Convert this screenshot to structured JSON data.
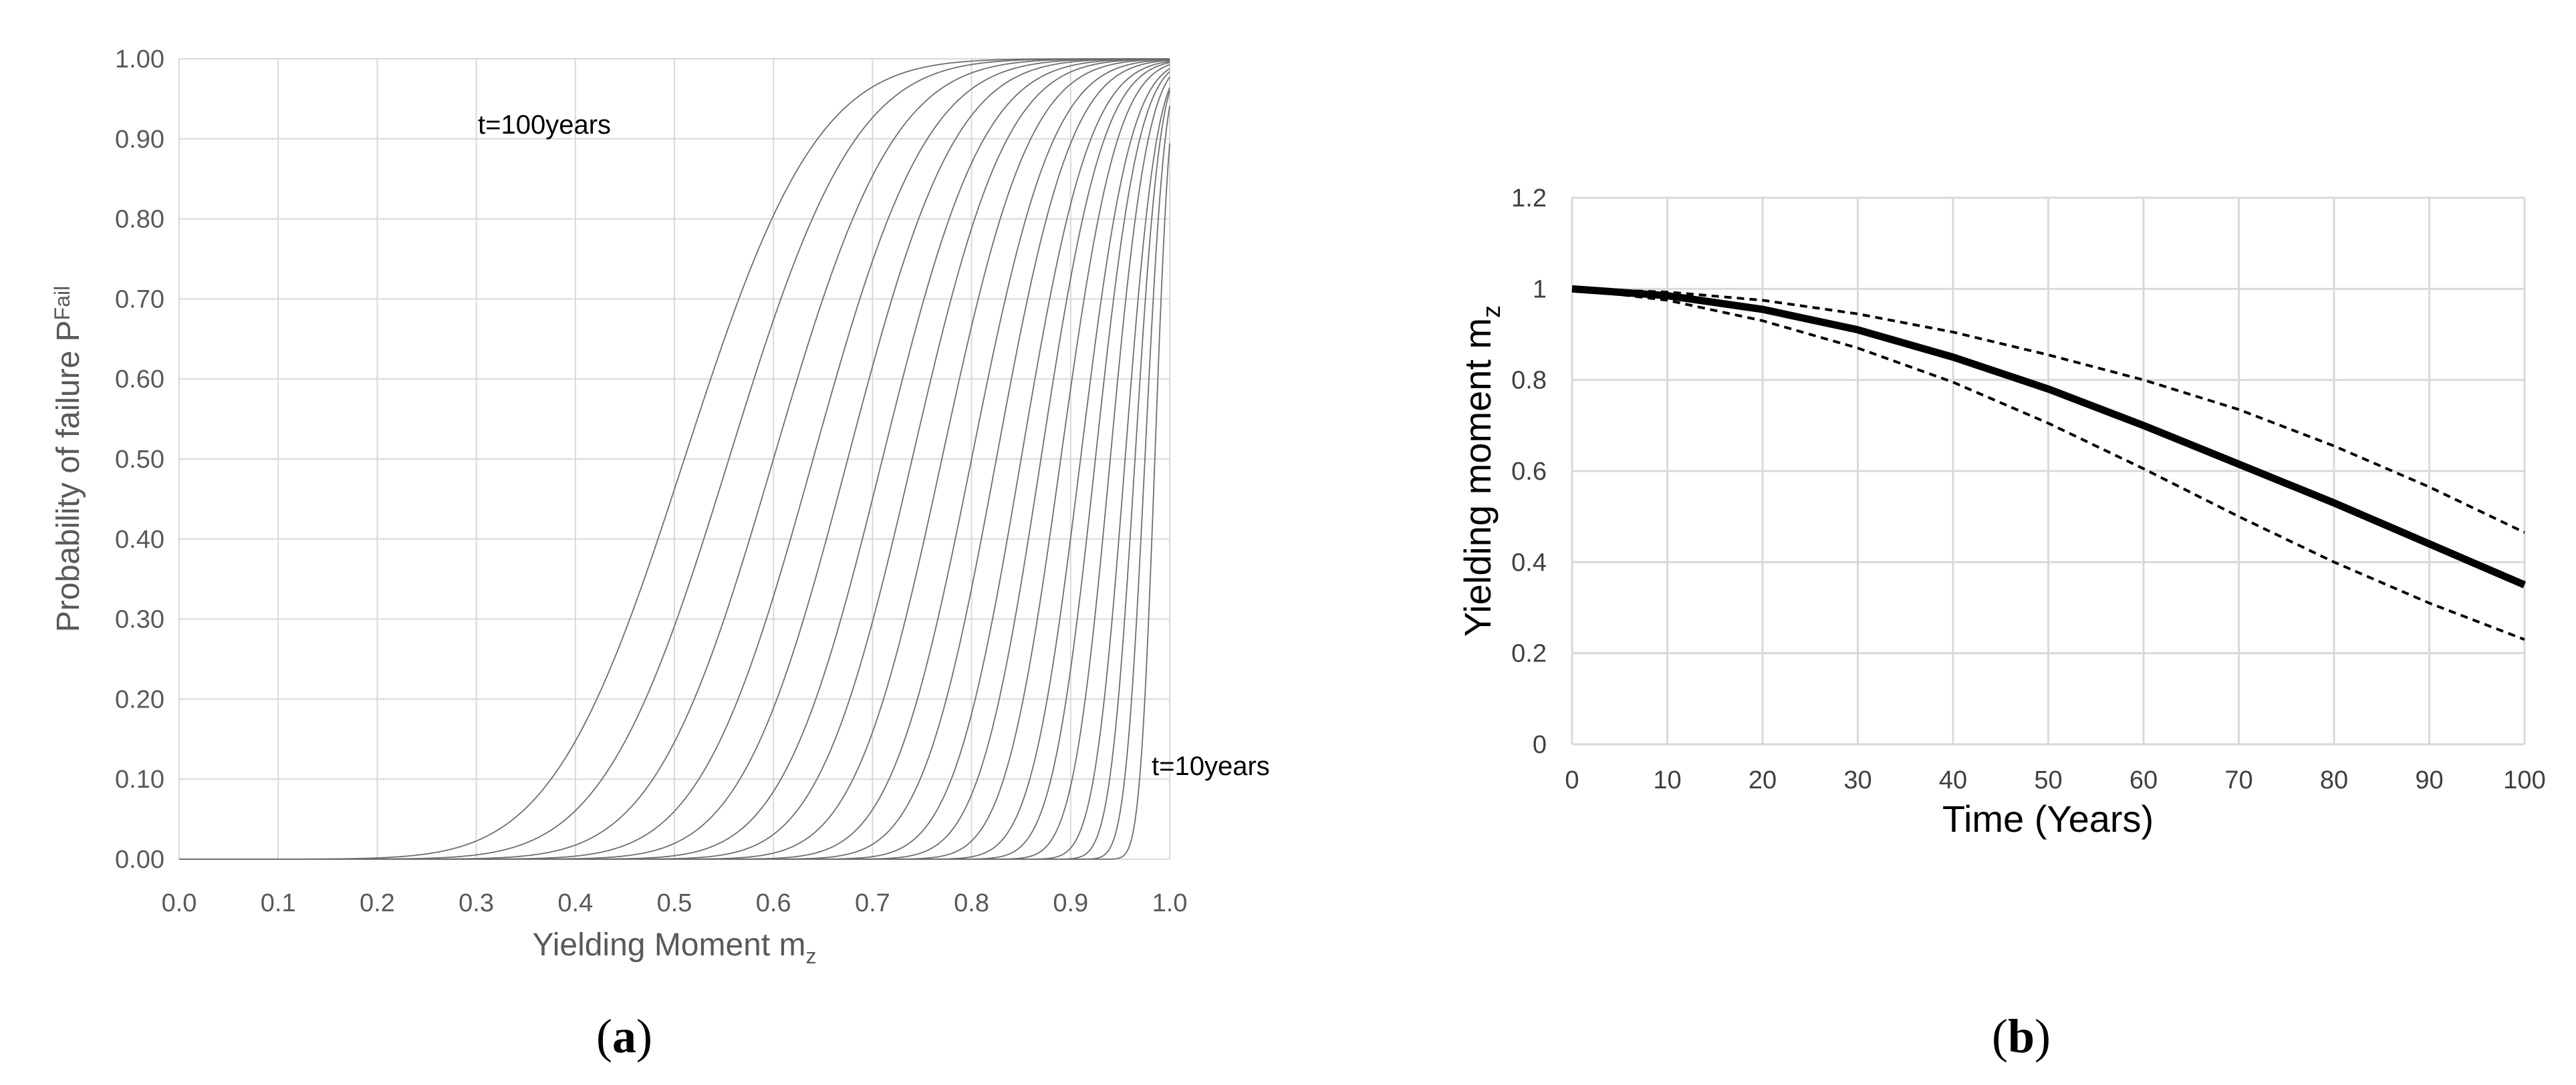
{
  "chart_data": [
    {
      "type": "line",
      "panel": "a",
      "panel_prefix": "(",
      "panel_letter": "a",
      "panel_suffix": ")",
      "xlabel": "Yielding Moment m",
      "xlabel_sub": "z",
      "ylabel": "Probability of failure P",
      "ylabel_sub": "Fail",
      "xlim": [
        0.0,
        1.0
      ],
      "ylim": [
        0.0,
        1.0
      ],
      "xticks": [
        "0.0",
        "0.1",
        "0.2",
        "0.3",
        "0.4",
        "0.5",
        "0.6",
        "0.7",
        "0.8",
        "0.9",
        "1.0"
      ],
      "yticks": [
        "0.00",
        "0.10",
        "0.20",
        "0.30",
        "0.40",
        "0.50",
        "0.60",
        "0.70",
        "0.80",
        "0.90",
        "1.00"
      ],
      "grid": true,
      "series_description": "CDF of failure probability vs yielding moment for t = 10, 15, ..., 100 years",
      "series_medians": [
        0.985,
        0.975,
        0.965,
        0.955,
        0.94,
        0.925,
        0.91,
        0.89,
        0.87,
        0.85,
        0.825,
        0.8,
        0.77,
        0.74,
        0.71,
        0.675,
        0.64,
        0.6,
        0.555,
        0.51
      ],
      "series_spreads": [
        0.012,
        0.016,
        0.02,
        0.025,
        0.03,
        0.035,
        0.04,
        0.045,
        0.05,
        0.055,
        0.06,
        0.065,
        0.07,
        0.075,
        0.08,
        0.085,
        0.09,
        0.095,
        0.1,
        0.105
      ],
      "annotations": [
        {
          "text": "t=100years"
        },
        {
          "text": "t=10years"
        }
      ]
    },
    {
      "type": "line",
      "panel": "b",
      "panel_prefix": "(",
      "panel_letter": "b",
      "panel_suffix": ")",
      "xlabel": "Time (Years)",
      "ylabel": "Yielding moment m",
      "ylabel_sub": "z",
      "xlim": [
        0,
        100
      ],
      "ylim": [
        0,
        1.2
      ],
      "xticks": [
        "0",
        "10",
        "20",
        "30",
        "40",
        "50",
        "60",
        "70",
        "80",
        "90",
        "100"
      ],
      "yticks": [
        "0",
        "0.2",
        "0.4",
        "0.6",
        "0.8",
        "1",
        "1.2"
      ],
      "grid": true,
      "x": [
        0,
        10,
        20,
        30,
        40,
        50,
        60,
        70,
        80,
        90,
        100
      ],
      "series": [
        {
          "name": "mean",
          "style": "solid-thick",
          "values": [
            1.0,
            0.985,
            0.955,
            0.91,
            0.85,
            0.78,
            0.7,
            0.615,
            0.53,
            0.44,
            0.35
          ]
        },
        {
          "name": "upper bound",
          "style": "dashed",
          "values": [
            1.0,
            0.993,
            0.975,
            0.945,
            0.905,
            0.855,
            0.8,
            0.735,
            0.655,
            0.565,
            0.465
          ]
        },
        {
          "name": "lower bound",
          "style": "dashed",
          "values": [
            1.0,
            0.975,
            0.93,
            0.87,
            0.795,
            0.705,
            0.605,
            0.5,
            0.4,
            0.31,
            0.23
          ]
        }
      ]
    }
  ]
}
